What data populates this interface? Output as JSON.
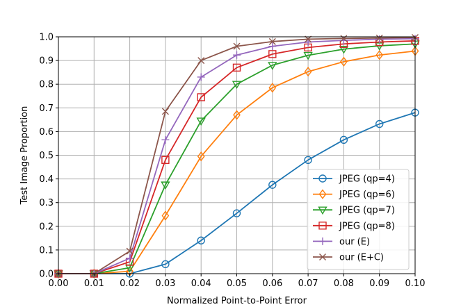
{
  "chart_data": {
    "type": "line",
    "title": "",
    "xlabel": "Normalized Point-to-Point Error",
    "ylabel": "Test Image Proportion",
    "xlim": [
      0.0,
      0.1
    ],
    "ylim": [
      0.0,
      1.0
    ],
    "grid": true,
    "legend_position": "lower-right",
    "x_ticks": [
      "0.00",
      "0.01",
      "0.02",
      "0.03",
      "0.04",
      "0.05",
      "0.06",
      "0.07",
      "0.08",
      "0.09",
      "0.10"
    ],
    "y_ticks": [
      "0.0",
      "0.1",
      "0.2",
      "0.3",
      "0.4",
      "0.5",
      "0.6",
      "0.7",
      "0.8",
      "0.9",
      "1.0"
    ],
    "x": [
      0.0,
      0.01,
      0.02,
      0.03,
      0.04,
      0.05,
      0.06,
      0.07,
      0.08,
      0.09,
      0.1
    ],
    "series": [
      {
        "name": "JPEG (qp=4)",
        "color": "#1f77b4",
        "marker": "circle",
        "values": [
          0.0,
          0.0,
          0.0,
          0.04,
          0.14,
          0.255,
          0.375,
          0.48,
          0.565,
          0.632,
          0.68
        ]
      },
      {
        "name": "JPEG (qp=6)",
        "color": "#ff7f0e",
        "marker": "diamond",
        "values": [
          0.0,
          0.0,
          0.01,
          0.245,
          0.495,
          0.67,
          0.785,
          0.853,
          0.895,
          0.923,
          0.94
        ]
      },
      {
        "name": "JPEG (qp=7)",
        "color": "#2ca02c",
        "marker": "triangle-down",
        "values": [
          0.0,
          0.0,
          0.025,
          0.375,
          0.645,
          0.8,
          0.88,
          0.922,
          0.948,
          0.962,
          0.97
        ]
      },
      {
        "name": "JPEG (qp=8)",
        "color": "#d62728",
        "marker": "square",
        "values": [
          0.0,
          0.0,
          0.05,
          0.48,
          0.745,
          0.87,
          0.927,
          0.955,
          0.97,
          0.978,
          0.983
        ]
      },
      {
        "name": "our (E)",
        "color": "#9467bd",
        "marker": "plus",
        "values": [
          0.0,
          0.0,
          0.065,
          0.565,
          0.83,
          0.923,
          0.96,
          0.978,
          0.985,
          0.99,
          0.992
        ]
      },
      {
        "name": "our (E+C)",
        "color": "#8c564b",
        "marker": "x",
        "values": [
          0.0,
          0.0,
          0.095,
          0.685,
          0.9,
          0.96,
          0.98,
          0.99,
          0.993,
          0.995,
          0.997
        ]
      }
    ]
  }
}
